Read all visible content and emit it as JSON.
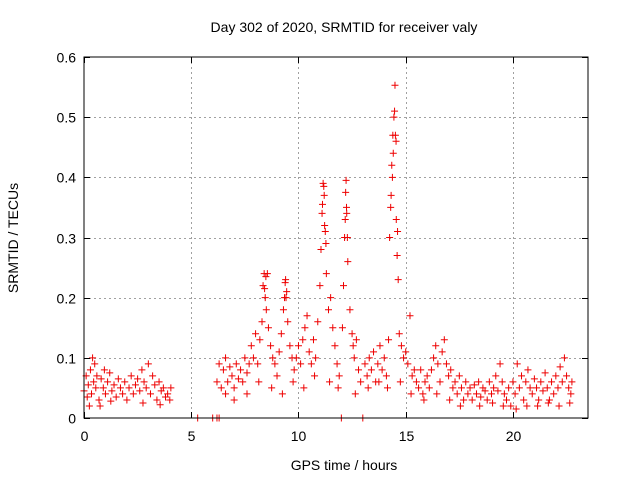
{
  "chart_data": {
    "type": "scatter",
    "title": "Day 302 of 2020, SRMTID for receiver valy",
    "xlabel": "GPS time / hours",
    "ylabel": "SRMTID / TECUs",
    "xlim": [
      0,
      23.5
    ],
    "ylim": [
      0,
      0.6
    ],
    "xticks": [
      0,
      5,
      10,
      15,
      20
    ],
    "xtick_labels": [
      "0",
      "5",
      "10",
      "15",
      "20"
    ],
    "yticks": [
      0,
      0.1,
      0.2,
      0.3,
      0.4,
      0.5,
      0.6
    ],
    "ytick_labels": [
      "0",
      "0.1",
      "0.2",
      "0.3",
      "0.4",
      "0.5",
      "0.6"
    ],
    "grid": true,
    "marker": "+",
    "colors": {
      "series": "#ee0000",
      "grid": "#a0a0a0",
      "axis": "#000000"
    },
    "series": [
      {
        "name": "SRMTID",
        "points": [
          [
            0.0,
            0.045
          ],
          [
            0.1,
            0.07
          ],
          [
            0.15,
            0.035
          ],
          [
            0.2,
            0.055
          ],
          [
            0.3,
            0.08
          ],
          [
            0.35,
            0.04
          ],
          [
            0.4,
            0.1
          ],
          [
            0.45,
            0.06
          ],
          [
            0.5,
            0.09
          ],
          [
            0.55,
            0.05
          ],
          [
            0.6,
            0.07
          ],
          [
            0.7,
            0.03
          ],
          [
            0.8,
            0.065
          ],
          [
            0.9,
            0.05
          ],
          [
            0.95,
            0.08
          ],
          [
            1.0,
            0.04
          ],
          [
            1.1,
            0.06
          ],
          [
            1.2,
            0.075
          ],
          [
            1.3,
            0.045
          ],
          [
            1.4,
            0.055
          ],
          [
            1.5,
            0.035
          ],
          [
            1.6,
            0.065
          ],
          [
            1.7,
            0.05
          ],
          [
            1.8,
            0.04
          ],
          [
            1.9,
            0.06
          ],
          [
            2.0,
            0.03
          ],
          [
            2.1,
            0.05
          ],
          [
            2.2,
            0.07
          ],
          [
            2.3,
            0.04
          ],
          [
            2.4,
            0.055
          ],
          [
            2.5,
            0.065
          ],
          [
            2.6,
            0.045
          ],
          [
            2.7,
            0.08
          ],
          [
            2.8,
            0.06
          ],
          [
            2.9,
            0.05
          ],
          [
            3.0,
            0.09
          ],
          [
            3.1,
            0.04
          ],
          [
            3.2,
            0.07
          ],
          [
            3.3,
            0.055
          ],
          [
            3.4,
            0.03
          ],
          [
            3.5,
            0.06
          ],
          [
            3.6,
            0.045
          ],
          [
            3.7,
            0.05
          ],
          [
            3.8,
            0.035
          ],
          [
            3.9,
            0.04
          ],
          [
            4.0,
            0.03
          ],
          [
            4.05,
            0.05
          ],
          [
            0.25,
            0.02
          ],
          [
            0.75,
            0.02
          ],
          [
            1.25,
            0.028
          ],
          [
            2.75,
            0.025
          ],
          [
            3.55,
            0.022
          ],
          [
            5.3,
            0.0
          ],
          [
            6.0,
            0.0
          ],
          [
            6.2,
            0.0
          ],
          [
            6.3,
            0.0
          ],
          [
            6.2,
            0.06
          ],
          [
            6.3,
            0.09
          ],
          [
            6.4,
            0.05
          ],
          [
            6.5,
            0.08
          ],
          [
            6.6,
            0.1
          ],
          [
            6.7,
            0.06
          ],
          [
            6.8,
            0.085
          ],
          [
            6.9,
            0.07
          ],
          [
            7.0,
            0.05
          ],
          [
            7.1,
            0.09
          ],
          [
            7.2,
            0.065
          ],
          [
            7.3,
            0.08
          ],
          [
            7.4,
            0.06
          ],
          [
            7.5,
            0.1
          ],
          [
            7.6,
            0.075
          ],
          [
            7.7,
            0.09
          ],
          [
            7.8,
            0.12
          ],
          [
            7.9,
            0.1
          ],
          [
            8.0,
            0.14
          ],
          [
            8.1,
            0.09
          ],
          [
            8.2,
            0.13
          ],
          [
            8.3,
            0.16
          ],
          [
            8.35,
            0.22
          ],
          [
            8.4,
            0.24
          ],
          [
            8.45,
            0.2
          ],
          [
            8.5,
            0.18
          ],
          [
            8.55,
            0.24
          ],
          [
            8.6,
            0.15
          ],
          [
            8.7,
            0.12
          ],
          [
            8.8,
            0.1
          ],
          [
            8.9,
            0.09
          ],
          [
            9.0,
            0.07
          ],
          [
            9.1,
            0.11
          ],
          [
            9.2,
            0.14
          ],
          [
            9.3,
            0.18
          ],
          [
            9.35,
            0.2
          ],
          [
            9.4,
            0.23
          ],
          [
            9.45,
            0.21
          ],
          [
            9.5,
            0.16
          ],
          [
            9.6,
            0.12
          ],
          [
            9.7,
            0.1
          ],
          [
            9.8,
            0.08
          ],
          [
            9.9,
            0.1
          ],
          [
            10.0,
            0.12
          ],
          [
            10.1,
            0.09
          ],
          [
            10.2,
            0.13
          ],
          [
            10.3,
            0.15
          ],
          [
            10.4,
            0.17
          ],
          [
            10.5,
            0.11
          ],
          [
            10.6,
            0.09
          ],
          [
            10.7,
            0.13
          ],
          [
            10.8,
            0.1
          ],
          [
            10.9,
            0.16
          ],
          [
            11.0,
            0.22
          ],
          [
            11.05,
            0.28
          ],
          [
            11.1,
            0.34
          ],
          [
            11.15,
            0.39
          ],
          [
            11.2,
            0.37
          ],
          [
            11.25,
            0.31
          ],
          [
            11.3,
            0.24
          ],
          [
            11.4,
            0.18
          ],
          [
            11.5,
            0.2
          ],
          [
            11.6,
            0.15
          ],
          [
            11.7,
            0.12
          ],
          [
            11.8,
            0.09
          ],
          [
            11.9,
            0.07
          ],
          [
            12.0,
            0.0
          ],
          [
            12.05,
            0.15
          ],
          [
            12.1,
            0.22
          ],
          [
            12.15,
            0.3
          ],
          [
            12.2,
            0.375
          ],
          [
            12.22,
            0.395
          ],
          [
            12.25,
            0.34
          ],
          [
            12.3,
            0.26
          ],
          [
            12.4,
            0.18
          ],
          [
            12.5,
            0.14
          ],
          [
            12.55,
            0.12
          ],
          [
            12.6,
            0.1
          ],
          [
            12.7,
            0.13
          ],
          [
            12.8,
            0.08
          ],
          [
            12.9,
            0.06
          ],
          [
            13.0,
            0.0
          ],
          [
            13.1,
            0.09
          ],
          [
            13.2,
            0.07
          ],
          [
            13.3,
            0.1
          ],
          [
            13.4,
            0.08
          ],
          [
            13.5,
            0.11
          ],
          [
            13.6,
            0.06
          ],
          [
            13.7,
            0.09
          ],
          [
            13.8,
            0.12
          ],
          [
            13.9,
            0.08
          ],
          [
            14.0,
            0.1
          ],
          [
            14.1,
            0.07
          ],
          [
            14.2,
            0.13
          ],
          [
            14.25,
            0.3
          ],
          [
            14.3,
            0.35
          ],
          [
            14.35,
            0.42
          ],
          [
            14.4,
            0.47
          ],
          [
            14.45,
            0.5
          ],
          [
            14.5,
            0.553
          ],
          [
            14.55,
            0.46
          ],
          [
            14.6,
            0.27
          ],
          [
            14.65,
            0.23
          ],
          [
            14.7,
            0.14
          ],
          [
            14.8,
            0.12
          ],
          [
            14.9,
            0.1
          ],
          [
            15.0,
            0.11
          ],
          [
            15.1,
            0.09
          ],
          [
            15.2,
            0.17
          ],
          [
            15.3,
            0.07
          ],
          [
            15.4,
            0.08
          ],
          [
            15.5,
            0.06
          ],
          [
            15.6,
            0.05
          ],
          [
            15.7,
            0.08
          ],
          [
            15.8,
            0.04
          ],
          [
            15.9,
            0.06
          ],
          [
            16.0,
            0.07
          ],
          [
            16.1,
            0.05
          ],
          [
            16.2,
            0.08
          ],
          [
            16.3,
            0.1
          ],
          [
            16.4,
            0.12
          ],
          [
            16.5,
            0.09
          ],
          [
            16.6,
            0.06
          ],
          [
            16.7,
            0.11
          ],
          [
            16.8,
            0.13
          ],
          [
            16.9,
            0.09
          ],
          [
            17.0,
            0.07
          ],
          [
            17.1,
            0.08
          ],
          [
            17.2,
            0.05
          ],
          [
            17.3,
            0.06
          ],
          [
            17.4,
            0.04
          ],
          [
            17.5,
            0.07
          ],
          [
            17.6,
            0.05
          ],
          [
            17.7,
            0.03
          ],
          [
            17.8,
            0.06
          ],
          [
            17.9,
            0.04
          ],
          [
            18.0,
            0.05
          ],
          [
            18.1,
            0.03
          ],
          [
            18.2,
            0.055
          ],
          [
            18.3,
            0.04
          ],
          [
            18.4,
            0.06
          ],
          [
            18.5,
            0.035
          ],
          [
            18.6,
            0.05
          ],
          [
            18.7,
            0.045
          ],
          [
            18.8,
            0.03
          ],
          [
            18.9,
            0.06
          ],
          [
            19.0,
            0.04
          ],
          [
            19.1,
            0.05
          ],
          [
            19.2,
            0.07
          ],
          [
            19.3,
            0.045
          ],
          [
            19.4,
            0.09
          ],
          [
            19.5,
            0.06
          ],
          [
            19.6,
            0.04
          ],
          [
            19.7,
            0.03
          ],
          [
            19.8,
            0.05
          ],
          [
            19.9,
            0.02
          ],
          [
            20.0,
            0.06
          ],
          [
            20.1,
            0.04
          ],
          [
            20.2,
            0.09
          ],
          [
            20.3,
            0.05
          ],
          [
            20.4,
            0.07
          ],
          [
            20.5,
            0.03
          ],
          [
            20.6,
            0.06
          ],
          [
            20.7,
            0.08
          ],
          [
            20.8,
            0.05
          ],
          [
            20.9,
            0.04
          ],
          [
            21.0,
            0.065
          ],
          [
            21.1,
            0.05
          ],
          [
            21.2,
            0.03
          ],
          [
            21.3,
            0.06
          ],
          [
            21.4,
            0.045
          ],
          [
            21.5,
            0.075
          ],
          [
            21.6,
            0.05
          ],
          [
            21.7,
            0.03
          ],
          [
            21.8,
            0.06
          ],
          [
            21.9,
            0.04
          ],
          [
            22.0,
            0.07
          ],
          [
            22.1,
            0.05
          ],
          [
            22.2,
            0.085
          ],
          [
            22.3,
            0.06
          ],
          [
            22.4,
            0.1
          ],
          [
            22.5,
            0.07
          ],
          [
            22.6,
            0.05
          ],
          [
            22.7,
            0.04
          ],
          [
            22.75,
            0.06
          ],
          [
            6.6,
            0.04
          ],
          [
            7.0,
            0.03
          ],
          [
            7.6,
            0.04
          ],
          [
            8.15,
            0.06
          ],
          [
            8.75,
            0.05
          ],
          [
            9.25,
            0.04
          ],
          [
            9.75,
            0.06
          ],
          [
            10.25,
            0.05
          ],
          [
            10.75,
            0.07
          ],
          [
            11.45,
            0.06
          ],
          [
            11.85,
            0.05
          ],
          [
            12.65,
            0.04
          ],
          [
            13.25,
            0.05
          ],
          [
            13.75,
            0.06
          ],
          [
            14.15,
            0.05
          ],
          [
            14.75,
            0.06
          ],
          [
            15.25,
            0.04
          ],
          [
            15.85,
            0.03
          ],
          [
            16.45,
            0.04
          ],
          [
            17.05,
            0.03
          ],
          [
            17.55,
            0.02
          ],
          [
            18.45,
            0.02
          ],
          [
            19.05,
            0.025
          ],
          [
            19.55,
            0.02
          ],
          [
            20.15,
            0.015
          ],
          [
            20.65,
            0.02
          ],
          [
            21.15,
            0.02
          ],
          [
            21.65,
            0.025
          ],
          [
            22.15,
            0.02
          ],
          [
            22.65,
            0.025
          ],
          [
            8.42,
            0.215
          ],
          [
            8.48,
            0.235
          ],
          [
            9.38,
            0.225
          ],
          [
            9.42,
            0.2
          ],
          [
            11.12,
            0.355
          ],
          [
            11.18,
            0.385
          ],
          [
            11.22,
            0.32
          ],
          [
            11.28,
            0.29
          ],
          [
            12.18,
            0.33
          ],
          [
            12.24,
            0.35
          ],
          [
            12.28,
            0.3
          ],
          [
            14.32,
            0.37
          ],
          [
            14.38,
            0.4
          ],
          [
            14.42,
            0.44
          ],
          [
            14.48,
            0.51
          ],
          [
            14.52,
            0.47
          ],
          [
            14.56,
            0.33
          ],
          [
            14.62,
            0.31
          ]
        ]
      }
    ]
  }
}
